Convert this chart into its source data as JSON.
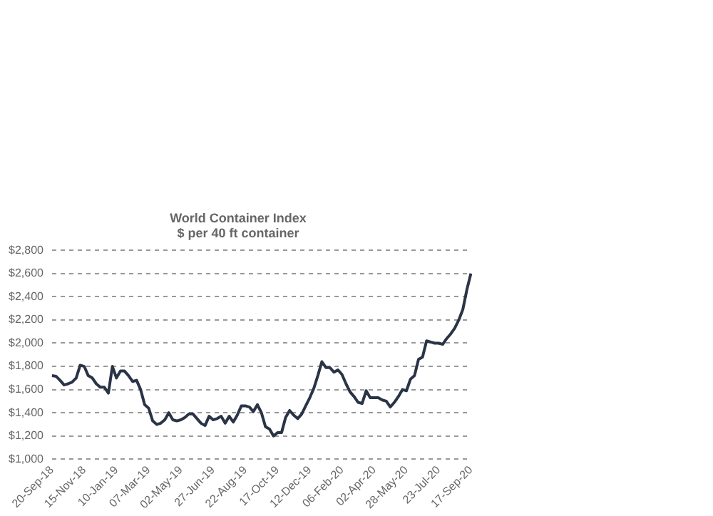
{
  "chart_data": {
    "type": "line",
    "title": "World Container Index",
    "subtitle": "$ per 40 ft container",
    "categories": [
      "20-Sep-18",
      null,
      null,
      null,
      null,
      null,
      null,
      null,
      "15-Nov-18",
      null,
      null,
      null,
      null,
      null,
      null,
      null,
      "10-Jan-19",
      null,
      null,
      null,
      null,
      null,
      null,
      null,
      "07-Mar-19",
      null,
      null,
      null,
      null,
      null,
      null,
      null,
      "02-May-19",
      null,
      null,
      null,
      null,
      null,
      null,
      null,
      "27-Jun-19",
      null,
      null,
      null,
      null,
      null,
      null,
      null,
      "22-Aug-19",
      null,
      null,
      null,
      null,
      null,
      null,
      null,
      "17-Oct-19",
      null,
      null,
      null,
      null,
      null,
      null,
      null,
      "12-Dec-19",
      null,
      null,
      null,
      null,
      null,
      null,
      null,
      "06-Feb-20",
      null,
      null,
      null,
      null,
      null,
      null,
      null,
      "02-Apr-20",
      null,
      null,
      null,
      null,
      null,
      null,
      null,
      "28-May-20",
      null,
      null,
      null,
      null,
      null,
      null,
      null,
      "23-Jul-20",
      null,
      null,
      null,
      null,
      null,
      null,
      null,
      "17-Sep-20"
    ],
    "series": [
      {
        "color": "#2b3447",
        "values": [
          1720,
          1715,
          1680,
          1640,
          1650,
          1665,
          1700,
          1810,
          1800,
          1720,
          1700,
          1650,
          1620,
          1620,
          1570,
          1800,
          1700,
          1760,
          1760,
          1720,
          1670,
          1680,
          1600,
          1470,
          1440,
          1330,
          1300,
          1310,
          1340,
          1400,
          1340,
          1330,
          1340,
          1360,
          1390,
          1390,
          1350,
          1310,
          1290,
          1370,
          1340,
          1350,
          1370,
          1310,
          1370,
          1320,
          1380,
          1460,
          1460,
          1450,
          1410,
          1470,
          1400,
          1280,
          1260,
          1200,
          1230,
          1230,
          1360,
          1420,
          1380,
          1350,
          1390,
          1460,
          1530,
          1610,
          1720,
          1840,
          1790,
          1790,
          1750,
          1770,
          1730,
          1650,
          1580,
          1540,
          1490,
          1480,
          1590,
          1530,
          1530,
          1530,
          1510,
          1500,
          1450,
          1490,
          1540,
          1600,
          1590,
          1690,
          1720,
          1860,
          1880,
          2020,
          2010,
          2000,
          2000,
          1990,
          2040,
          2080,
          2130,
          2200,
          2290,
          2460,
          2600
        ]
      }
    ],
    "ylim": [
      1000,
      2800
    ],
    "yticks": [
      {
        "value": 1000,
        "label": "$1,000"
      },
      {
        "value": 1200,
        "label": "$1,200"
      },
      {
        "value": 1400,
        "label": "$1,400"
      },
      {
        "value": 1600,
        "label": "$1,600"
      },
      {
        "value": 1800,
        "label": "$1,800"
      },
      {
        "value": 2000,
        "label": "$2,000"
      },
      {
        "value": 2200,
        "label": "$2,200"
      },
      {
        "value": 2400,
        "label": "$2,400"
      },
      {
        "value": 2600,
        "label": "$2,600"
      },
      {
        "value": 2800,
        "label": "$2,800"
      }
    ],
    "grid": "y",
    "legend": false,
    "marker": "none",
    "line_style": "solid"
  }
}
